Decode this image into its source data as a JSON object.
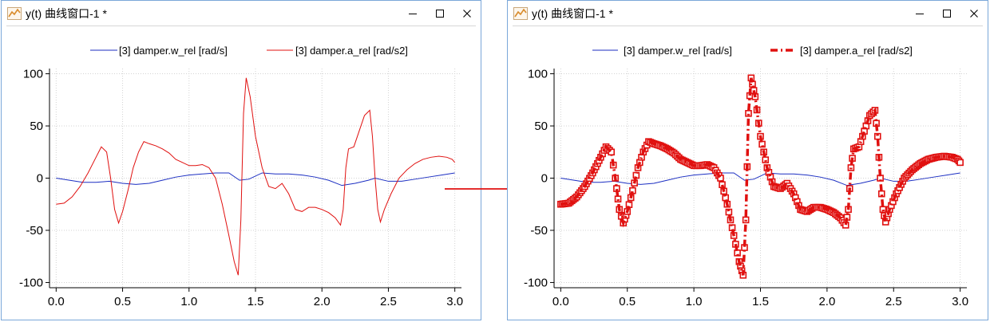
{
  "windows": [
    {
      "title": "y(t) 曲线窗口-1 *",
      "chart": {
        "legend": [
          "[3] damper.w_rel [rad/s]",
          "[3] damper.a_rel [rad/s2]"
        ]
      }
    },
    {
      "title": "y(t) 曲线窗口-1 *",
      "chart": {
        "legend": [
          "[3] damper.w_rel [rad/s]",
          "[3] damper.a_rel [rad/s2]"
        ]
      }
    }
  ],
  "colors": {
    "w_rel": "#1b2ec2",
    "a_rel": "#e0100f",
    "window_border": "#7aa7d9",
    "arrow": "#e01010",
    "grid": "#d3d3d3"
  },
  "icons": [
    "chart-app-icon",
    "minimize-icon",
    "maximize-icon",
    "close-icon",
    "transition-arrow-icon"
  ],
  "chart_data": [
    {
      "type": "line",
      "title": "",
      "xlabel": "",
      "ylabel": "",
      "xlim": [
        -0.05,
        3.05
      ],
      "ylim": [
        -105,
        105
      ],
      "xticks": [
        "0.0",
        "0.5",
        "1.0",
        "1.5",
        "2.0",
        "2.5",
        "3.0"
      ],
      "yticks": [
        "100",
        "50",
        "0",
        "-50",
        "-100"
      ],
      "grid": true,
      "legend_position": "top",
      "series": [
        {
          "name": "[3] damper.w_rel [rad/s]",
          "style": "thin-line",
          "x": [
            0.0,
            0.1,
            0.2,
            0.3,
            0.4,
            0.5,
            0.6,
            0.7,
            0.8,
            0.9,
            1.0,
            1.1,
            1.2,
            1.3,
            1.38,
            1.45,
            1.55,
            1.65,
            1.75,
            1.85,
            1.95,
            2.05,
            2.15,
            2.25,
            2.35,
            2.4,
            2.5,
            2.6,
            2.7,
            2.8,
            2.9,
            3.0
          ],
          "y": [
            0,
            -2,
            -4,
            -4,
            -3,
            -5,
            -6,
            -5,
            -2,
            1,
            3,
            4,
            5,
            5,
            -2,
            -1,
            5,
            4,
            4,
            3,
            1,
            -2,
            -7,
            -5,
            -2,
            0,
            -3,
            -3,
            -1,
            1,
            3,
            5
          ]
        },
        {
          "name": "[3] damper.a_rel [rad/s2]",
          "style": "thin-line",
          "x": [
            0.0,
            0.06,
            0.12,
            0.18,
            0.24,
            0.3,
            0.34,
            0.38,
            0.41,
            0.44,
            0.47,
            0.5,
            0.54,
            0.58,
            0.62,
            0.66,
            0.7,
            0.75,
            0.8,
            0.85,
            0.9,
            0.95,
            1.0,
            1.05,
            1.1,
            1.15,
            1.2,
            1.25,
            1.3,
            1.34,
            1.37,
            1.39,
            1.41,
            1.43,
            1.46,
            1.5,
            1.55,
            1.6,
            1.65,
            1.7,
            1.75,
            1.8,
            1.85,
            1.9,
            1.95,
            2.0,
            2.05,
            2.1,
            2.14,
            2.16,
            2.18,
            2.2,
            2.24,
            2.28,
            2.32,
            2.36,
            2.38,
            2.4,
            2.42,
            2.44,
            2.47,
            2.52,
            2.58,
            2.64,
            2.7,
            2.76,
            2.82,
            2.88,
            2.94,
            2.98,
            3.0
          ],
          "y": [
            -25,
            -24,
            -18,
            -8,
            5,
            20,
            30,
            25,
            0,
            -30,
            -43,
            -32,
            -12,
            10,
            25,
            35,
            33,
            31,
            28,
            24,
            18,
            15,
            12,
            12,
            13,
            10,
            0,
            -25,
            -55,
            -80,
            -93,
            -40,
            62,
            96,
            78,
            40,
            10,
            -8,
            -10,
            -5,
            -15,
            -30,
            -32,
            -28,
            -28,
            -30,
            -33,
            -38,
            -45,
            -30,
            10,
            28,
            30,
            45,
            60,
            65,
            40,
            0,
            -30,
            -42,
            -30,
            -15,
            0,
            8,
            14,
            18,
            20,
            21,
            20,
            18,
            15
          ]
        }
      ]
    },
    {
      "type": "line",
      "title": "",
      "xlabel": "",
      "ylabel": "",
      "xlim": [
        -0.05,
        3.05
      ],
      "ylim": [
        -105,
        105
      ],
      "xticks": [
        "0.0",
        "0.5",
        "1.0",
        "1.5",
        "2.0",
        "2.5",
        "3.0"
      ],
      "yticks": [
        "100",
        "50",
        "0",
        "-50",
        "-100"
      ],
      "grid": true,
      "legend_position": "top",
      "series": [
        {
          "name": "[3] damper.w_rel [rad/s]",
          "style": "thin-line",
          "x": [
            0.0,
            0.1,
            0.2,
            0.3,
            0.4,
            0.5,
            0.6,
            0.7,
            0.8,
            0.9,
            1.0,
            1.1,
            1.2,
            1.3,
            1.38,
            1.45,
            1.55,
            1.65,
            1.75,
            1.85,
            1.95,
            2.05,
            2.15,
            2.25,
            2.35,
            2.4,
            2.5,
            2.6,
            2.7,
            2.8,
            2.9,
            3.0
          ],
          "y": [
            0,
            -2,
            -4,
            -4,
            -3,
            -5,
            -6,
            -5,
            -2,
            1,
            3,
            4,
            5,
            5,
            -2,
            -1,
            5,
            4,
            4,
            3,
            1,
            -2,
            -7,
            -5,
            -2,
            0,
            -3,
            -3,
            -1,
            1,
            3,
            5
          ]
        },
        {
          "name": "[3] damper.a_rel [rad/s2]",
          "style": "thick-dash-dot-square-markers",
          "x": [
            0.0,
            0.06,
            0.12,
            0.18,
            0.24,
            0.3,
            0.34,
            0.38,
            0.41,
            0.44,
            0.47,
            0.5,
            0.54,
            0.58,
            0.62,
            0.66,
            0.7,
            0.75,
            0.8,
            0.85,
            0.9,
            0.95,
            1.0,
            1.05,
            1.1,
            1.15,
            1.2,
            1.25,
            1.3,
            1.34,
            1.37,
            1.39,
            1.41,
            1.43,
            1.46,
            1.5,
            1.55,
            1.6,
            1.65,
            1.7,
            1.75,
            1.8,
            1.85,
            1.9,
            1.95,
            2.0,
            2.05,
            2.1,
            2.14,
            2.16,
            2.18,
            2.2,
            2.24,
            2.28,
            2.32,
            2.36,
            2.38,
            2.4,
            2.42,
            2.44,
            2.47,
            2.52,
            2.58,
            2.64,
            2.7,
            2.76,
            2.82,
            2.88,
            2.94,
            2.98,
            3.0
          ],
          "y": [
            -25,
            -24,
            -18,
            -8,
            5,
            20,
            30,
            25,
            0,
            -30,
            -43,
            -32,
            -12,
            10,
            25,
            35,
            33,
            31,
            28,
            24,
            18,
            15,
            12,
            12,
            13,
            10,
            0,
            -25,
            -55,
            -80,
            -93,
            -40,
            62,
            96,
            78,
            40,
            10,
            -8,
            -10,
            -5,
            -15,
            -30,
            -32,
            -28,
            -28,
            -30,
            -33,
            -38,
            -45,
            -30,
            10,
            28,
            30,
            45,
            60,
            65,
            40,
            0,
            -30,
            -42,
            -30,
            -15,
            0,
            8,
            14,
            18,
            20,
            21,
            20,
            18,
            15
          ]
        }
      ]
    }
  ]
}
